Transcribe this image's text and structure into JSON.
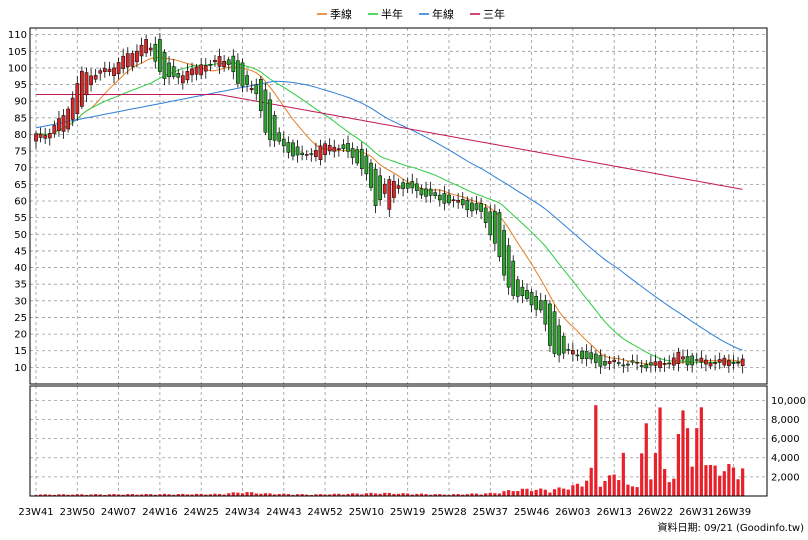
{
  "chart_data": {
    "type": "candlestick",
    "legend": [
      {
        "name": "季線",
        "color": "#e67e22"
      },
      {
        "name": "半年",
        "color": "#2ecc40"
      },
      {
        "name": "年線",
        "color": "#2f7fd8"
      },
      {
        "name": "三年",
        "color": "#c2185b"
      }
    ],
    "legend_position": "top-center",
    "grid": true,
    "price_axis": {
      "side": "left",
      "ylim": [
        5,
        112
      ],
      "ticks": [
        10,
        15,
        20,
        25,
        30,
        35,
        40,
        45,
        50,
        55,
        60,
        65,
        70,
        75,
        80,
        85,
        90,
        95,
        100,
        105,
        110
      ]
    },
    "volume_axis": {
      "side": "right",
      "ylim": [
        0,
        11500
      ],
      "ticks": [
        2000,
        4000,
        6000,
        8000,
        10000
      ],
      "tick_labels": [
        "2,000",
        "4,000",
        "6,000",
        "8,000",
        "10,000"
      ]
    },
    "x_axis": {
      "range": [
        0,
        158
      ],
      "ticks": [
        {
          "x": 0,
          "label": "23W41"
        },
        {
          "x": 9,
          "label": "23W50"
        },
        {
          "x": 18,
          "label": "24W07"
        },
        {
          "x": 27,
          "label": "24W16"
        },
        {
          "x": 36,
          "label": "24W25"
        },
        {
          "x": 45,
          "label": "24W34"
        },
        {
          "x": 54,
          "label": "24W43"
        },
        {
          "x": 63,
          "label": "24W52"
        },
        {
          "x": 72,
          "label": "25W10"
        },
        {
          "x": 81,
          "label": "25W19"
        },
        {
          "x": 90,
          "label": "25W28"
        },
        {
          "x": 99,
          "label": "25W37"
        },
        {
          "x": 108,
          "label": "25W46"
        },
        {
          "x": 117,
          "label": "26W03"
        },
        {
          "x": 126,
          "label": "26W13"
        },
        {
          "x": 135,
          "label": "26W22"
        },
        {
          "x": 144,
          "label": "26W31"
        },
        {
          "x": 152,
          "label": "26W39"
        }
      ]
    },
    "credit": "資料日期: 09/21  (Goodinfo.tw)",
    "colors": {
      "up": "#d62728",
      "down": "#2ca02c",
      "volume": "#e8202a",
      "grid": "#999999"
    },
    "ohlc_anchors": [
      [
        0,
        78,
        79
      ],
      [
        4,
        80,
        81
      ],
      [
        7,
        82,
        86
      ],
      [
        9,
        86,
        92
      ],
      [
        11,
        92,
        99
      ],
      [
        14,
        99,
        98
      ],
      [
        17,
        98,
        100
      ],
      [
        20,
        100,
        103
      ],
      [
        23,
        103,
        106
      ],
      [
        25,
        106,
        108
      ],
      [
        27,
        108,
        102
      ],
      [
        29,
        102,
        96
      ],
      [
        32,
        96,
        98
      ],
      [
        35,
        98,
        99
      ],
      [
        37,
        99,
        102
      ],
      [
        39,
        102,
        100
      ],
      [
        41,
        100,
        104
      ],
      [
        43,
        104,
        101
      ],
      [
        45,
        101,
        94
      ],
      [
        47,
        94,
        96
      ],
      [
        49,
        96,
        91
      ],
      [
        51,
        91,
        80
      ],
      [
        53,
        80,
        78
      ],
      [
        55,
        78,
        76
      ],
      [
        57,
        76,
        74
      ],
      [
        59,
        74,
        73
      ],
      [
        62,
        73,
        76
      ],
      [
        66,
        76,
        77
      ],
      [
        68,
        77,
        75
      ],
      [
        71,
        75,
        72
      ],
      [
        73,
        72,
        67
      ],
      [
        75,
        67,
        58
      ],
      [
        77,
        58,
        66
      ],
      [
        80,
        66,
        65
      ],
      [
        83,
        65,
        63
      ],
      [
        86,
        63,
        62
      ],
      [
        89,
        62,
        60
      ],
      [
        92,
        60,
        60
      ],
      [
        95,
        60,
        58
      ],
      [
        98,
        58,
        56
      ],
      [
        101,
        56,
        47
      ],
      [
        103,
        47,
        36
      ],
      [
        105,
        36,
        32
      ],
      [
        108,
        32,
        30
      ],
      [
        111,
        30,
        27
      ],
      [
        113,
        27,
        15
      ],
      [
        116,
        15,
        14
      ],
      [
        118,
        14,
        15
      ],
      [
        121,
        15,
        12
      ],
      [
        124,
        12,
        11
      ],
      [
        127,
        11,
        11.5
      ],
      [
        130,
        11.5,
        11
      ],
      [
        133,
        11,
        10.5
      ],
      [
        136,
        10.5,
        11
      ],
      [
        139,
        11,
        12
      ],
      [
        141,
        12,
        14
      ],
      [
        143,
        14,
        11
      ],
      [
        145,
        11,
        12
      ]
    ],
    "volume_anchors": [
      [
        0,
        150
      ],
      [
        40,
        200
      ],
      [
        45,
        400
      ],
      [
        50,
        250
      ],
      [
        60,
        150
      ],
      [
        75,
        300
      ],
      [
        90,
        150
      ],
      [
        100,
        300
      ],
      [
        104,
        600
      ],
      [
        108,
        700
      ],
      [
        112,
        600
      ],
      [
        116,
        900
      ],
      [
        119,
        1200
      ],
      [
        121,
        2500
      ],
      [
        122,
        8600
      ],
      [
        123,
        1400
      ],
      [
        125,
        1800
      ],
      [
        127,
        2600
      ],
      [
        128,
        4200
      ],
      [
        129,
        1000
      ],
      [
        131,
        1200
      ],
      [
        133,
        6600
      ],
      [
        134,
        2200
      ],
      [
        136,
        7800
      ],
      [
        137,
        2600
      ],
      [
        139,
        1800
      ],
      [
        141,
        9000
      ],
      [
        142,
        10500
      ],
      [
        143,
        2800
      ],
      [
        144,
        6000
      ],
      [
        145,
        10500
      ],
      [
        146,
        4000
      ],
      [
        147,
        2800
      ]
    ]
  }
}
